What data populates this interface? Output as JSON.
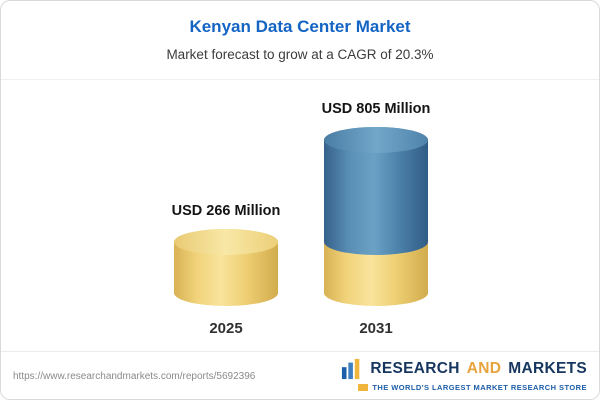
{
  "header": {
    "title": "Kenyan Data Center Market",
    "subtitle": "Market forecast to grow at a CAGR of 20.3%"
  },
  "chart_data": {
    "type": "bar",
    "subtype": "3d-cylinder",
    "title": "Kenyan Data Center Market",
    "subtitle": "Market forecast to grow at a CAGR of 20.3%",
    "unit": "USD Million",
    "categories": [
      "2025",
      "2031"
    ],
    "values": [
      266,
      805
    ],
    "bar_labels": [
      "USD 266 Million",
      "USD 805 Million"
    ],
    "cagr": "20.3%",
    "segments": [
      [
        {
          "value": 266,
          "color": "yellow"
        }
      ],
      [
        {
          "value": 266,
          "color": "yellow"
        },
        {
          "value": 539,
          "color": "blue"
        }
      ]
    ],
    "legend": null,
    "grid": false,
    "colors": {
      "yellow": "#F0D075",
      "blue": "#4E84AB"
    }
  },
  "footer": {
    "url": "https://www.researchandmarkets.com/reports/5692396",
    "logo": {
      "word1": "RESEARCH",
      "word2": "AND",
      "word3": "MARKETS",
      "tagline": "THE WORLD'S LARGEST MARKET RESEARCH STORE"
    }
  },
  "colors": {
    "title_blue": "#1464C4",
    "logo_navy": "#16365F",
    "logo_gold": "#E8A33D",
    "tagline_blue": "#1C5EA8",
    "border": "#D9D9D9"
  }
}
